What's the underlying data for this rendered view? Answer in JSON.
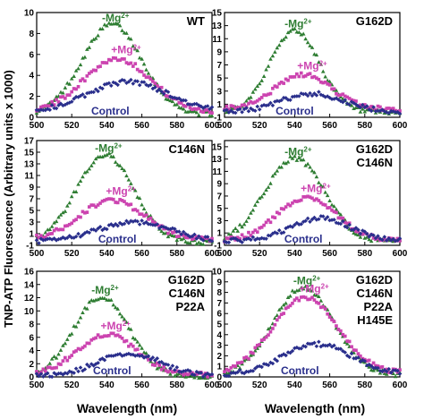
{
  "figure": {
    "ylabel": "TNP-ATP Fluorescence (Arbitrary units x 1000)",
    "xlabel": "Wavelength (nm)"
  },
  "colors": {
    "mg": "#2e7d32",
    "plus": "#cc44b0",
    "control": "#2a2f8c",
    "axis": "#000000"
  },
  "chart_data": [
    {
      "type": "scatter",
      "panel": "top-left",
      "title": "WT",
      "xlim": [
        500,
        600
      ],
      "ylim": [
        0,
        10
      ],
      "xticks": [
        500,
        520,
        540,
        560,
        580,
        600
      ],
      "yticks": [
        0,
        2,
        4,
        6,
        8,
        10
      ],
      "series": [
        {
          "name": "-Mg2+",
          "peak": 8.9,
          "center": 543,
          "width": 24,
          "base": 0.3,
          "marker": "triangle"
        },
        {
          "name": "+Mg2+",
          "peak": 5.6,
          "center": 546,
          "width": 27,
          "base": 0.5,
          "marker": "square"
        },
        {
          "name": "Control",
          "peak": 3.4,
          "center": 552,
          "width": 33,
          "base": 0.4,
          "marker": "diamond"
        }
      ]
    },
    {
      "type": "scatter",
      "panel": "top-right",
      "title": "G162D",
      "xlim": [
        500,
        600
      ],
      "ylim": [
        -1,
        15
      ],
      "xticks": [
        500,
        520,
        540,
        560,
        580,
        600
      ],
      "yticks": [
        -1,
        1,
        3,
        5,
        7,
        9,
        11,
        13,
        15
      ],
      "series": [
        {
          "name": "-Mg2+",
          "peak": 12.3,
          "center": 540,
          "width": 20,
          "base": -0.3,
          "marker": "triangle"
        },
        {
          "name": "+Mg2+",
          "peak": 5.5,
          "center": 545,
          "width": 23,
          "base": 0.2,
          "marker": "square"
        },
        {
          "name": "Control",
          "peak": 2.6,
          "center": 550,
          "width": 25,
          "base": -0.2,
          "marker": "diamond"
        }
      ]
    },
    {
      "type": "scatter",
      "panel": "middle-left",
      "title": "C146N",
      "xlim": [
        500,
        600
      ],
      "ylim": [
        -1,
        17
      ],
      "xticks": [
        500,
        520,
        540,
        560,
        580,
        600
      ],
      "yticks": [
        -1,
        1,
        3,
        5,
        7,
        9,
        11,
        13,
        15,
        17
      ],
      "series": [
        {
          "name": "-Mg2+",
          "peak": 14.6,
          "center": 539,
          "width": 23,
          "base": -0.5,
          "marker": "triangle"
        },
        {
          "name": "+Mg2+",
          "peak": 6.8,
          "center": 543,
          "width": 26,
          "base": -0.1,
          "marker": "square"
        },
        {
          "name": "Control",
          "peak": 3.0,
          "center": 556,
          "width": 30,
          "base": -0.4,
          "marker": "diamond"
        }
      ]
    },
    {
      "type": "scatter",
      "panel": "middle-right",
      "title": "G162D C146N",
      "xlim": [
        500,
        600
      ],
      "ylim": [
        -1,
        16
      ],
      "xticks": [
        500,
        520,
        540,
        560,
        580,
        600
      ],
      "yticks": [
        -1,
        1,
        3,
        5,
        7,
        9,
        11,
        13,
        15
      ],
      "series": [
        {
          "name": "-Mg2+",
          "peak": 13.2,
          "center": 540,
          "width": 24,
          "base": -0.5,
          "marker": "triangle"
        },
        {
          "name": "+Mg2+",
          "peak": 6.8,
          "center": 547,
          "width": 24,
          "base": -0.3,
          "marker": "square"
        },
        {
          "name": "Control",
          "peak": 3.4,
          "center": 555,
          "width": 24,
          "base": -0.3,
          "marker": "diamond"
        }
      ]
    },
    {
      "type": "scatter",
      "panel": "bottom-left",
      "title": "G162D C146N P22A",
      "xlim": [
        500,
        600
      ],
      "ylim": [
        0,
        16
      ],
      "xticks": [
        500,
        520,
        540,
        560,
        580,
        600
      ],
      "yticks": [
        0,
        2,
        4,
        6,
        8,
        10,
        12,
        14,
        16
      ],
      "series": [
        {
          "name": "-Mg2+",
          "peak": 12.2,
          "center": 537,
          "width": 22,
          "base": 0.1,
          "marker": "triangle"
        },
        {
          "name": "+Mg2+",
          "peak": 6.4,
          "center": 540,
          "width": 24,
          "base": 0.3,
          "marker": "square"
        },
        {
          "name": "Control",
          "peak": 3.5,
          "center": 553,
          "width": 26,
          "base": 0.1,
          "marker": "diamond"
        }
      ]
    },
    {
      "type": "scatter",
      "panel": "bottom-right",
      "title": "G162D C146N P22A H145E",
      "xlim": [
        500,
        600
      ],
      "ylim": [
        0,
        10
      ],
      "xticks": [
        500,
        520,
        540,
        560,
        580,
        600
      ],
      "yticks": [
        0,
        1,
        2,
        3,
        4,
        5,
        6,
        7,
        8,
        9,
        10
      ],
      "series": [
        {
          "name": "-Mg2+",
          "peak": 8.5,
          "center": 545,
          "width": 24,
          "base": 0.2,
          "marker": "triangle"
        },
        {
          "name": "+Mg2+",
          "peak": 7.5,
          "center": 546,
          "width": 26,
          "base": 0.4,
          "marker": "square"
        },
        {
          "name": "Control",
          "peak": 3.1,
          "center": 553,
          "width": 28,
          "base": 0.2,
          "marker": "diamond"
        }
      ]
    }
  ]
}
